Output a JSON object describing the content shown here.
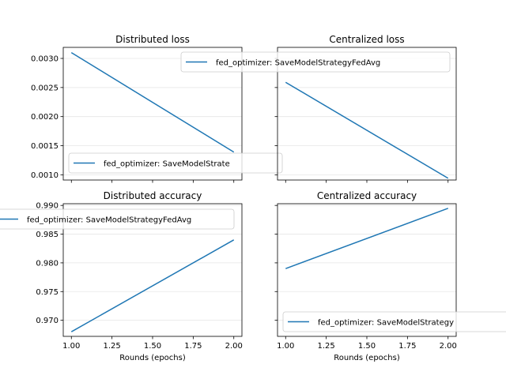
{
  "chart_data": [
    {
      "type": "line",
      "title": "Distributed loss",
      "xlabel": "",
      "ylabel": "",
      "x": [
        1,
        2
      ],
      "series": [
        {
          "name": "fed_optimizer: SaveModelStrategyFedAvg",
          "color": "#1f77b4",
          "values": [
            0.0031,
            0.00139
          ]
        }
      ],
      "xlim": [
        0.95,
        2.05
      ],
      "ylim": [
        0.00091,
        0.00319
      ],
      "xticks": [
        1.0,
        1.25,
        1.5,
        1.75,
        2.0
      ],
      "xtick_labels": [
        "",
        "",
        "",
        "",
        ""
      ],
      "yticks": [
        0.001,
        0.0015,
        0.002,
        0.0025,
        0.003
      ],
      "ytick_labels": [
        "0.0010",
        "0.0015",
        "0.0020",
        "0.0025",
        "0.0030"
      ],
      "grid": "y",
      "legend": "bottom-left",
      "legend_label": "fed_optimizer: SaveModelStrate"
    },
    {
      "type": "line",
      "title": "Centralized loss",
      "xlabel": "",
      "ylabel": "",
      "x": [
        1,
        2
      ],
      "series": [
        {
          "name": "fed_optimizer: SaveModelStrategyFedAvg",
          "color": "#1f77b4",
          "values": [
            0.00259,
            0.00094
          ]
        }
      ],
      "xlim": [
        0.95,
        2.05
      ],
      "ylim": [
        0.00091,
        0.00319
      ],
      "xticks": [
        1.0,
        1.25,
        1.5,
        1.75,
        2.0
      ],
      "xtick_labels": [
        "",
        "",
        "",
        "",
        ""
      ],
      "yticks": [
        0.001,
        0.0015,
        0.002,
        0.0025,
        0.003
      ],
      "ytick_labels": [
        "",
        "",
        "",
        "",
        ""
      ],
      "grid": "y",
      "legend": "top-right",
      "legend_label": "fed_optimizer: SaveModelStrategyFedAvg"
    },
    {
      "type": "line",
      "title": "Distributed accuracy",
      "xlabel": "Rounds (epochs)",
      "ylabel": "",
      "x": [
        1,
        2
      ],
      "series": [
        {
          "name": "fed_optimizer: SaveModelStrategyFedAvg",
          "color": "#1f77b4",
          "values": [
            0.968,
            0.984
          ]
        }
      ],
      "xlim": [
        0.95,
        2.05
      ],
      "ylim": [
        0.9672,
        0.9903
      ],
      "xticks": [
        1.0,
        1.25,
        1.5,
        1.75,
        2.0
      ],
      "xtick_labels": [
        "1.00",
        "1.25",
        "1.50",
        "1.75",
        "2.00"
      ],
      "yticks": [
        0.97,
        0.975,
        0.98,
        0.985,
        0.99
      ],
      "ytick_labels": [
        "0.970",
        "0.975",
        "0.980",
        "0.985",
        "0.990"
      ],
      "grid": "y",
      "legend": "top-left",
      "legend_label": "fed_optimizer: SaveModelStrategyFedAvg"
    },
    {
      "type": "line",
      "title": "Centralized accuracy",
      "xlabel": "Rounds (epochs)",
      "ylabel": "",
      "x": [
        1,
        2
      ],
      "series": [
        {
          "name": "fed_optimizer: SaveModelStrategyFedAvg",
          "color": "#1f77b4",
          "values": [
            0.979,
            0.9895
          ]
        }
      ],
      "xlim": [
        0.95,
        2.05
      ],
      "ylim": [
        0.9672,
        0.9903
      ],
      "xticks": [
        1.0,
        1.25,
        1.5,
        1.75,
        2.0
      ],
      "xtick_labels": [
        "1.00",
        "1.25",
        "1.50",
        "1.75",
        "2.00"
      ],
      "yticks": [
        0.97,
        0.975,
        0.98,
        0.985,
        0.99
      ],
      "ytick_labels": [
        "",
        "",
        "",
        "",
        ""
      ],
      "grid": "y",
      "legend": "bottom-right",
      "legend_label": "fed_optimizer: SaveModelStrategy"
    }
  ]
}
